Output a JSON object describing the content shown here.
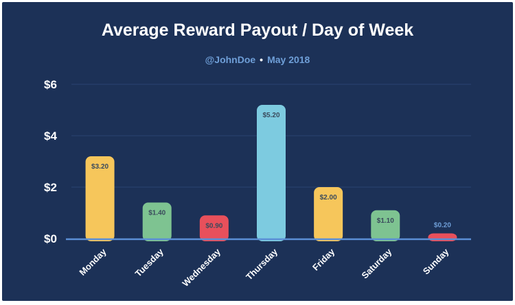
{
  "chart_data": {
    "type": "bar",
    "title": "Average Reward Payout / Day of Week",
    "subtitle": {
      "handle": "@JohnDoe",
      "separator": "•",
      "date": "May 2018"
    },
    "categories": [
      "Monday",
      "Tuesday",
      "Wednesday",
      "Thursday",
      "Friday",
      "Saturday",
      "Sunday"
    ],
    "values": [
      3.2,
      1.4,
      0.9,
      5.2,
      2.0,
      1.1,
      0.2
    ],
    "value_labels": [
      "$3.20",
      "$1.40",
      "$0.90",
      "$5.20",
      "$2.00",
      "$1.10",
      "$0.20"
    ],
    "bar_colors": [
      "#f6c65b",
      "#7ec391",
      "#e8505b",
      "#7dcbe0",
      "#f6c65b",
      "#7ec391",
      "#e8505b"
    ],
    "y_ticks": [
      0,
      2,
      4,
      6
    ],
    "y_tick_labels": [
      "$0",
      "$2",
      "$4",
      "$6"
    ],
    "ylim": [
      0,
      6
    ],
    "xlabel": "",
    "ylabel": "",
    "grid": true,
    "colors": {
      "background": "#1c3157",
      "title": "#ffffff",
      "subtitle": "#6f9fd8",
      "baseline": "#5b8fd6",
      "label_inside": "#3a4a5c",
      "label_outside": "#6f9fd8"
    }
  }
}
